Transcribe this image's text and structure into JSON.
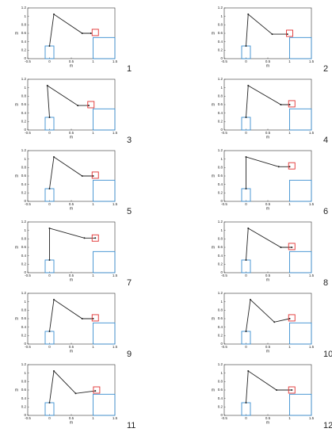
{
  "chart_data": [
    {
      "type": "line",
      "caption": "1",
      "xlabel": "m",
      "ylabel": "m",
      "xlim": [
        -0.5,
        1.5
      ],
      "ylim": [
        0,
        1.2
      ],
      "xticks": [
        -0.5,
        0,
        0.5,
        1,
        1.5
      ],
      "yticks": [
        0,
        0.2,
        0.4,
        0.6,
        0.8,
        1,
        1.2
      ],
      "color": "#222222",
      "x": [
        0,
        0.1,
        0.75,
        0.95
      ],
      "values": [
        0.3,
        1.05,
        0.6,
        0.6
      ],
      "boxes": [
        {
          "x": [
            -0.1,
            0.1
          ],
          "y": [
            0,
            0.3
          ]
        },
        {
          "x": [
            1,
            1.5
          ],
          "y": [
            0,
            0.5
          ]
        }
      ],
      "target": {
        "x": 1.05,
        "y": 0.62
      }
    },
    {
      "type": "line",
      "caption": "2",
      "xlabel": "m",
      "ylabel": "m",
      "xlim": [
        -0.5,
        1.5
      ],
      "ylim": [
        0,
        1.2
      ],
      "xticks": [
        -0.5,
        0,
        0.5,
        1,
        1.5
      ],
      "yticks": [
        0,
        0.2,
        0.4,
        0.6,
        0.8,
        1,
        1.2
      ],
      "color": "#222222",
      "x": [
        0,
        0.05,
        0.6,
        0.95
      ],
      "values": [
        0.3,
        1.05,
        0.58,
        0.58
      ],
      "boxes": [
        {
          "x": [
            -0.1,
            0.1
          ],
          "y": [
            0,
            0.3
          ]
        },
        {
          "x": [
            1,
            1.5
          ],
          "y": [
            0,
            0.5
          ]
        }
      ],
      "target": {
        "x": 1.0,
        "y": 0.6
      }
    },
    {
      "type": "line",
      "caption": "3",
      "xlabel": "m",
      "ylabel": "m",
      "xlim": [
        -0.5,
        1.5
      ],
      "ylim": [
        0,
        1.2
      ],
      "xticks": [
        -0.5,
        0,
        0.5,
        1,
        1.5
      ],
      "yticks": [
        0,
        0.2,
        0.4,
        0.6,
        0.8,
        1,
        1.2
      ],
      "color": "#222222",
      "x": [
        0,
        -0.05,
        0.65,
        0.9
      ],
      "values": [
        0.3,
        1.05,
        0.58,
        0.58
      ],
      "boxes": [
        {
          "x": [
            -0.1,
            0.1
          ],
          "y": [
            0,
            0.3
          ]
        },
        {
          "x": [
            1,
            1.5
          ],
          "y": [
            0,
            0.5
          ]
        }
      ],
      "target": {
        "x": 0.95,
        "y": 0.6
      }
    },
    {
      "type": "line",
      "caption": "4",
      "xlabel": "m",
      "ylabel": "m",
      "xlim": [
        -0.5,
        1.5
      ],
      "ylim": [
        0,
        1.2
      ],
      "xticks": [
        -0.5,
        0,
        0.5,
        1,
        1.5
      ],
      "yticks": [
        0,
        0.2,
        0.4,
        0.6,
        0.8,
        1,
        1.2
      ],
      "color": "#222222",
      "x": [
        0,
        0.05,
        0.8,
        1.0
      ],
      "values": [
        0.3,
        1.05,
        0.6,
        0.6
      ],
      "boxes": [
        {
          "x": [
            -0.1,
            0.1
          ],
          "y": [
            0,
            0.3
          ]
        },
        {
          "x": [
            1,
            1.5
          ],
          "y": [
            0,
            0.5
          ]
        }
      ],
      "target": {
        "x": 1.05,
        "y": 0.62
      }
    },
    {
      "type": "line",
      "caption": "5",
      "xlabel": "m",
      "ylabel": "m",
      "xlim": [
        -0.5,
        1.5
      ],
      "ylim": [
        0,
        1.2
      ],
      "xticks": [
        -0.5,
        0,
        0.5,
        1,
        1.5
      ],
      "yticks": [
        0,
        0.2,
        0.4,
        0.6,
        0.8,
        1,
        1.2
      ],
      "color": "#222222",
      "x": [
        0,
        0.1,
        0.75,
        1.0
      ],
      "values": [
        0.3,
        1.05,
        0.6,
        0.6
      ],
      "boxes": [
        {
          "x": [
            -0.1,
            0.1
          ],
          "y": [
            0,
            0.3
          ]
        },
        {
          "x": [
            1,
            1.5
          ],
          "y": [
            0,
            0.5
          ]
        }
      ],
      "target": {
        "x": 1.05,
        "y": 0.62
      }
    },
    {
      "type": "line",
      "caption": "6",
      "xlabel": "m",
      "ylabel": "m",
      "xlim": [
        -0.5,
        1.5
      ],
      "ylim": [
        0,
        1.2
      ],
      "xticks": [
        -0.5,
        0,
        0.5,
        1,
        1.5
      ],
      "yticks": [
        0,
        0.2,
        0.4,
        0.6,
        0.8,
        1,
        1.2
      ],
      "color": "#222222",
      "x": [
        0,
        0,
        0.75,
        1.0
      ],
      "values": [
        0.3,
        1.05,
        0.82,
        0.82
      ],
      "boxes": [
        {
          "x": [
            -0.1,
            0.1
          ],
          "y": [
            0,
            0.3
          ]
        },
        {
          "x": [
            1,
            1.5
          ],
          "y": [
            0,
            0.5
          ]
        }
      ],
      "target": {
        "x": 1.05,
        "y": 0.84
      }
    },
    {
      "type": "line",
      "caption": "7",
      "xlabel": "m",
      "ylabel": "m",
      "xlim": [
        -0.5,
        1.5
      ],
      "ylim": [
        0,
        1.2
      ],
      "xticks": [
        -0.5,
        0,
        0.5,
        1,
        1.5
      ],
      "yticks": [
        0,
        0.2,
        0.4,
        0.6,
        0.8,
        1,
        1.2
      ],
      "color": "#222222",
      "x": [
        0,
        0,
        0.8,
        1.05
      ],
      "values": [
        0.3,
        1.05,
        0.82,
        0.82
      ],
      "boxes": [
        {
          "x": [
            -0.1,
            0.1
          ],
          "y": [
            0,
            0.3
          ]
        },
        {
          "x": [
            1,
            1.5
          ],
          "y": [
            0,
            0.5
          ]
        }
      ],
      "target": {
        "x": 1.05,
        "y": 0.82
      }
    },
    {
      "type": "line",
      "caption": "8",
      "xlabel": "m",
      "ylabel": "m",
      "xlim": [
        -0.5,
        1.5
      ],
      "ylim": [
        0,
        1.2
      ],
      "xticks": [
        -0.5,
        0,
        0.5,
        1,
        1.5
      ],
      "yticks": [
        0,
        0.2,
        0.4,
        0.6,
        0.8,
        1,
        1.2
      ],
      "color": "#222222",
      "x": [
        0,
        0.05,
        0.8,
        1.05
      ],
      "values": [
        0.3,
        1.05,
        0.6,
        0.6
      ],
      "boxes": [
        {
          "x": [
            -0.1,
            0.1
          ],
          "y": [
            0,
            0.3
          ]
        },
        {
          "x": [
            1,
            1.5
          ],
          "y": [
            0,
            0.5
          ]
        }
      ],
      "target": {
        "x": 1.05,
        "y": 0.62
      }
    },
    {
      "type": "line",
      "caption": "9",
      "xlabel": "m",
      "ylabel": "m",
      "xlim": [
        -0.5,
        1.5
      ],
      "ylim": [
        0,
        1.2
      ],
      "xticks": [
        -0.5,
        0,
        0.5,
        1,
        1.5
      ],
      "yticks": [
        0,
        0.2,
        0.4,
        0.6,
        0.8,
        1,
        1.2
      ],
      "color": "#222222",
      "x": [
        0,
        0.1,
        0.75,
        1.0
      ],
      "values": [
        0.3,
        1.05,
        0.6,
        0.6
      ],
      "boxes": [
        {
          "x": [
            -0.1,
            0.1
          ],
          "y": [
            0,
            0.3
          ]
        },
        {
          "x": [
            1,
            1.5
          ],
          "y": [
            0,
            0.5
          ]
        }
      ],
      "target": {
        "x": 1.05,
        "y": 0.62
      }
    },
    {
      "type": "line",
      "caption": "10",
      "xlabel": "m",
      "ylabel": "m",
      "xlim": [
        -0.5,
        1.5
      ],
      "ylim": [
        0,
        1.2
      ],
      "xticks": [
        -0.5,
        0,
        0.5,
        1,
        1.5
      ],
      "yticks": [
        0,
        0.2,
        0.4,
        0.6,
        0.8,
        1,
        1.2
      ],
      "color": "#222222",
      "x": [
        0,
        0.1,
        0.65,
        1.0
      ],
      "values": [
        0.3,
        1.05,
        0.52,
        0.6
      ],
      "boxes": [
        {
          "x": [
            -0.1,
            0.1
          ],
          "y": [
            0,
            0.3
          ]
        },
        {
          "x": [
            1,
            1.5
          ],
          "y": [
            0,
            0.5
          ]
        }
      ],
      "target": {
        "x": 1.05,
        "y": 0.62
      }
    },
    {
      "type": "line",
      "caption": "11",
      "xlabel": "m",
      "ylabel": "m",
      "xlim": [
        -0.5,
        1.5
      ],
      "ylim": [
        0,
        1.2
      ],
      "xticks": [
        -0.5,
        0,
        0.5,
        1,
        1.5
      ],
      "yticks": [
        0,
        0.2,
        0.4,
        0.6,
        0.8,
        1,
        1.2
      ],
      "color": "#222222",
      "x": [
        0,
        0.1,
        0.6,
        1.05
      ],
      "values": [
        0.3,
        1.05,
        0.52,
        0.58
      ],
      "boxes": [
        {
          "x": [
            -0.1,
            0.1
          ],
          "y": [
            0,
            0.3
          ]
        },
        {
          "x": [
            1,
            1.5
          ],
          "y": [
            0,
            0.5
          ]
        }
      ],
      "target": {
        "x": 1.08,
        "y": 0.6
      }
    },
    {
      "type": "line",
      "caption": "12",
      "xlabel": "m",
      "ylabel": "m",
      "xlim": [
        -0.5,
        1.5
      ],
      "ylim": [
        0,
        1.2
      ],
      "xticks": [
        -0.5,
        0,
        0.5,
        1,
        1.5
      ],
      "yticks": [
        0,
        0.2,
        0.4,
        0.6,
        0.8,
        1,
        1.2
      ],
      "color": "#222222",
      "x": [
        0,
        0.05,
        0.7,
        1.05
      ],
      "values": [
        0.3,
        1.05,
        0.6,
        0.6
      ],
      "boxes": [
        {
          "x": [
            -0.1,
            0.1
          ],
          "y": [
            0,
            0.3
          ]
        },
        {
          "x": [
            1,
            1.5
          ],
          "y": [
            0,
            0.5
          ]
        }
      ],
      "target": {
        "x": 1.05,
        "y": 0.6
      }
    }
  ]
}
